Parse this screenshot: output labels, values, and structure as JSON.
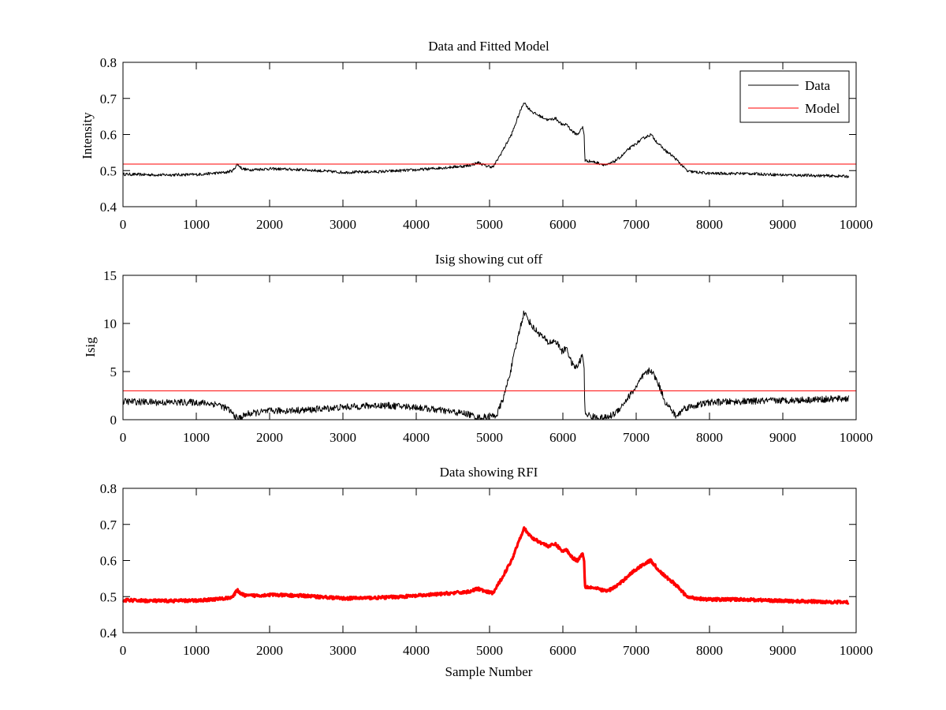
{
  "chart_data": [
    {
      "type": "line",
      "title": "Data and Fitted Model",
      "xlabel": "",
      "ylabel": "Intensity",
      "xlim": [
        0,
        10000
      ],
      "ylim": [
        0.4,
        0.8
      ],
      "xticks": [
        0,
        1000,
        2000,
        3000,
        4000,
        5000,
        6000,
        7000,
        8000,
        9000,
        10000
      ],
      "yticks": [
        0.4,
        0.5,
        0.6,
        0.7,
        0.8
      ],
      "ytick_labels": [
        "0.4",
        "0.5",
        "0.6",
        "0.7",
        "0.8"
      ],
      "grid": false,
      "legend": {
        "position": "top-right",
        "entries": [
          "Data",
          "Model"
        ]
      },
      "series": [
        {
          "name": "Data",
          "color": "#000000",
          "noise": 0.004,
          "x": [
            0,
            500,
            1000,
            1400,
            1500,
            1560,
            1620,
            1700,
            2000,
            2500,
            3000,
            3500,
            4000,
            4500,
            4700,
            4850,
            4950,
            5050,
            5150,
            5300,
            5400,
            5470,
            5520,
            5600,
            5700,
            5800,
            5900,
            6000,
            6050,
            6100,
            6150,
            6200,
            6270,
            6290,
            6300,
            6400,
            6500,
            6600,
            6700,
            6800,
            6900,
            7000,
            7100,
            7200,
            7300,
            7400,
            7500,
            7600,
            7700,
            8000,
            8500,
            9000,
            9500,
            9900
          ],
          "y": [
            0.49,
            0.488,
            0.489,
            0.495,
            0.5,
            0.518,
            0.506,
            0.502,
            0.505,
            0.502,
            0.495,
            0.497,
            0.502,
            0.51,
            0.513,
            0.522,
            0.513,
            0.51,
            0.545,
            0.6,
            0.655,
            0.69,
            0.675,
            0.66,
            0.65,
            0.64,
            0.645,
            0.625,
            0.63,
            0.615,
            0.605,
            0.6,
            0.62,
            0.6,
            0.528,
            0.525,
            0.52,
            0.515,
            0.525,
            0.54,
            0.56,
            0.575,
            0.59,
            0.6,
            0.575,
            0.555,
            0.54,
            0.52,
            0.498,
            0.492,
            0.492,
            0.488,
            0.486,
            0.484
          ]
        },
        {
          "name": "Model",
          "color": "#ff0000",
          "noise": 0,
          "x": [
            0,
            10000
          ],
          "y": [
            0.518,
            0.518
          ]
        }
      ]
    },
    {
      "type": "line",
      "title": "Isig showing cut off",
      "xlabel": "",
      "ylabel": "Isig",
      "xlim": [
        0,
        10000
      ],
      "ylim": [
        0,
        15
      ],
      "xticks": [
        0,
        1000,
        2000,
        3000,
        4000,
        5000,
        6000,
        7000,
        8000,
        9000,
        10000
      ],
      "yticks": [
        0,
        5,
        10,
        15
      ],
      "ytick_labels": [
        "0",
        "5",
        "10",
        "15"
      ],
      "grid": false,
      "series": [
        {
          "color": "#000000",
          "noise": 0.35,
          "x": [
            0,
            500,
            1000,
            1300,
            1450,
            1560,
            1620,
            1700,
            2000,
            2500,
            3000,
            3500,
            4000,
            4500,
            4700,
            4850,
            5000,
            5100,
            5200,
            5300,
            5400,
            5470,
            5520,
            5600,
            5700,
            5800,
            5900,
            6000,
            6050,
            6100,
            6150,
            6200,
            6270,
            6290,
            6300,
            6400,
            6500,
            6600,
            6700,
            6800,
            6900,
            7000,
            7100,
            7200,
            7300,
            7400,
            7500,
            7550,
            7650,
            8000,
            8500,
            9000,
            9500,
            9900
          ],
          "y": [
            1.9,
            1.8,
            1.8,
            1.6,
            1.0,
            0.1,
            0.3,
            0.6,
            0.9,
            1.0,
            1.3,
            1.5,
            1.3,
            0.8,
            0.6,
            0.2,
            0.3,
            0.5,
            2.5,
            5.5,
            9.0,
            11.2,
            10.5,
            9.5,
            8.8,
            8.0,
            8.2,
            7.0,
            7.6,
            6.2,
            5.5,
            5.5,
            6.8,
            5.0,
            0.7,
            0.3,
            0.2,
            0.2,
            0.6,
            1.4,
            2.4,
            3.4,
            4.6,
            5.2,
            3.8,
            1.8,
            0.8,
            0.3,
            1.2,
            1.8,
            1.9,
            2.0,
            2.1,
            2.2
          ]
        },
        {
          "color": "#ff0000",
          "noise": 0,
          "x": [
            0,
            10000
          ],
          "y": [
            3.0,
            3.0
          ]
        }
      ]
    },
    {
      "type": "line",
      "title": "Data showing RFI",
      "xlabel": "Sample Number",
      "ylabel": "",
      "xlim": [
        0,
        10000
      ],
      "ylim": [
        0.4,
        0.8
      ],
      "xticks": [
        0,
        1000,
        2000,
        3000,
        4000,
        5000,
        6000,
        7000,
        8000,
        9000,
        10000
      ],
      "yticks": [
        0.4,
        0.5,
        0.6,
        0.7,
        0.8
      ],
      "ytick_labels": [
        "0.4",
        "0.5",
        "0.6",
        "0.7",
        "0.8"
      ],
      "grid": false,
      "series": [
        {
          "color": "#ff0000",
          "noise": 0.004,
          "thick": true,
          "x": [
            0,
            500,
            1000,
            1400,
            1500,
            1560,
            1620,
            1700,
            2000,
            2500,
            3000,
            3500,
            4000,
            4500,
            4700,
            4850,
            4950,
            5050,
            5150,
            5300,
            5400,
            5470,
            5520,
            5600,
            5700,
            5800,
            5900,
            6000,
            6050,
            6100,
            6150,
            6200,
            6270,
            6290,
            6300,
            6400,
            6500,
            6600,
            6700,
            6800,
            6900,
            7000,
            7100,
            7200,
            7300,
            7400,
            7500,
            7600,
            7700,
            8000,
            8500,
            9000,
            9500,
            9900
          ],
          "y": [
            0.49,
            0.488,
            0.489,
            0.495,
            0.5,
            0.518,
            0.506,
            0.502,
            0.505,
            0.502,
            0.495,
            0.497,
            0.502,
            0.51,
            0.513,
            0.522,
            0.513,
            0.51,
            0.545,
            0.6,
            0.655,
            0.69,
            0.675,
            0.66,
            0.65,
            0.64,
            0.645,
            0.625,
            0.63,
            0.615,
            0.605,
            0.6,
            0.62,
            0.6,
            0.528,
            0.525,
            0.52,
            0.515,
            0.525,
            0.54,
            0.56,
            0.575,
            0.59,
            0.6,
            0.575,
            0.555,
            0.54,
            0.52,
            0.498,
            0.492,
            0.492,
            0.488,
            0.486,
            0.484
          ]
        }
      ]
    }
  ]
}
